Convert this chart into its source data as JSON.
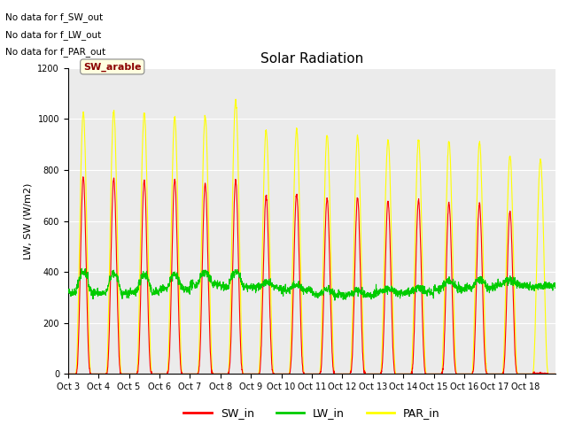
{
  "title": "Solar Radiation",
  "ylabel": "LW, SW (W/m2)",
  "annotations": [
    "No data for f_SW_out",
    "No data for f_LW_out",
    "No data for f_PAR_out"
  ],
  "sw_arable_label": "SW_arable",
  "x_tick_labels": [
    "Oct 3",
    "Oct 4",
    "Oct 5",
    "Oct 6",
    "Oct 7",
    "Oct 8",
    "Oct 9",
    "Oct 10",
    "Oct 11",
    "Oct 12",
    "Oct 13",
    "Oct 14",
    "Oct 15",
    "Oct 16",
    "Oct 17",
    "Oct 18"
  ],
  "ylim": [
    0,
    1200
  ],
  "yticks": [
    0,
    200,
    400,
    600,
    800,
    1000,
    1200
  ],
  "legend_entries": [
    "SW_in",
    "LW_in",
    "PAR_in"
  ],
  "legend_colors": [
    "#ff0000",
    "#00cc00",
    "#ffff00"
  ],
  "plot_bg_color": "#ebebeb",
  "sw_color": "#ff0000",
  "lw_color": "#00cc00",
  "par_color": "#ffff00",
  "n_days": 16,
  "points_per_day": 144,
  "sw_peaks": [
    770,
    770,
    760,
    760,
    745,
    760,
    700,
    705,
    690,
    690,
    680,
    680,
    670,
    670,
    640,
    0
  ],
  "par_peaks": [
    1025,
    1030,
    1025,
    1005,
    1010,
    1075,
    955,
    960,
    935,
    930,
    920,
    920,
    910,
    910,
    855,
    840
  ],
  "lw_base": [
    320,
    315,
    320,
    330,
    350,
    340,
    340,
    330,
    310,
    310,
    320,
    320,
    335,
    340,
    350,
    345
  ],
  "lw_peak_add": [
    80,
    80,
    70,
    60,
    50,
    60,
    20,
    20,
    20,
    15,
    15,
    15,
    30,
    30,
    20,
    0
  ]
}
